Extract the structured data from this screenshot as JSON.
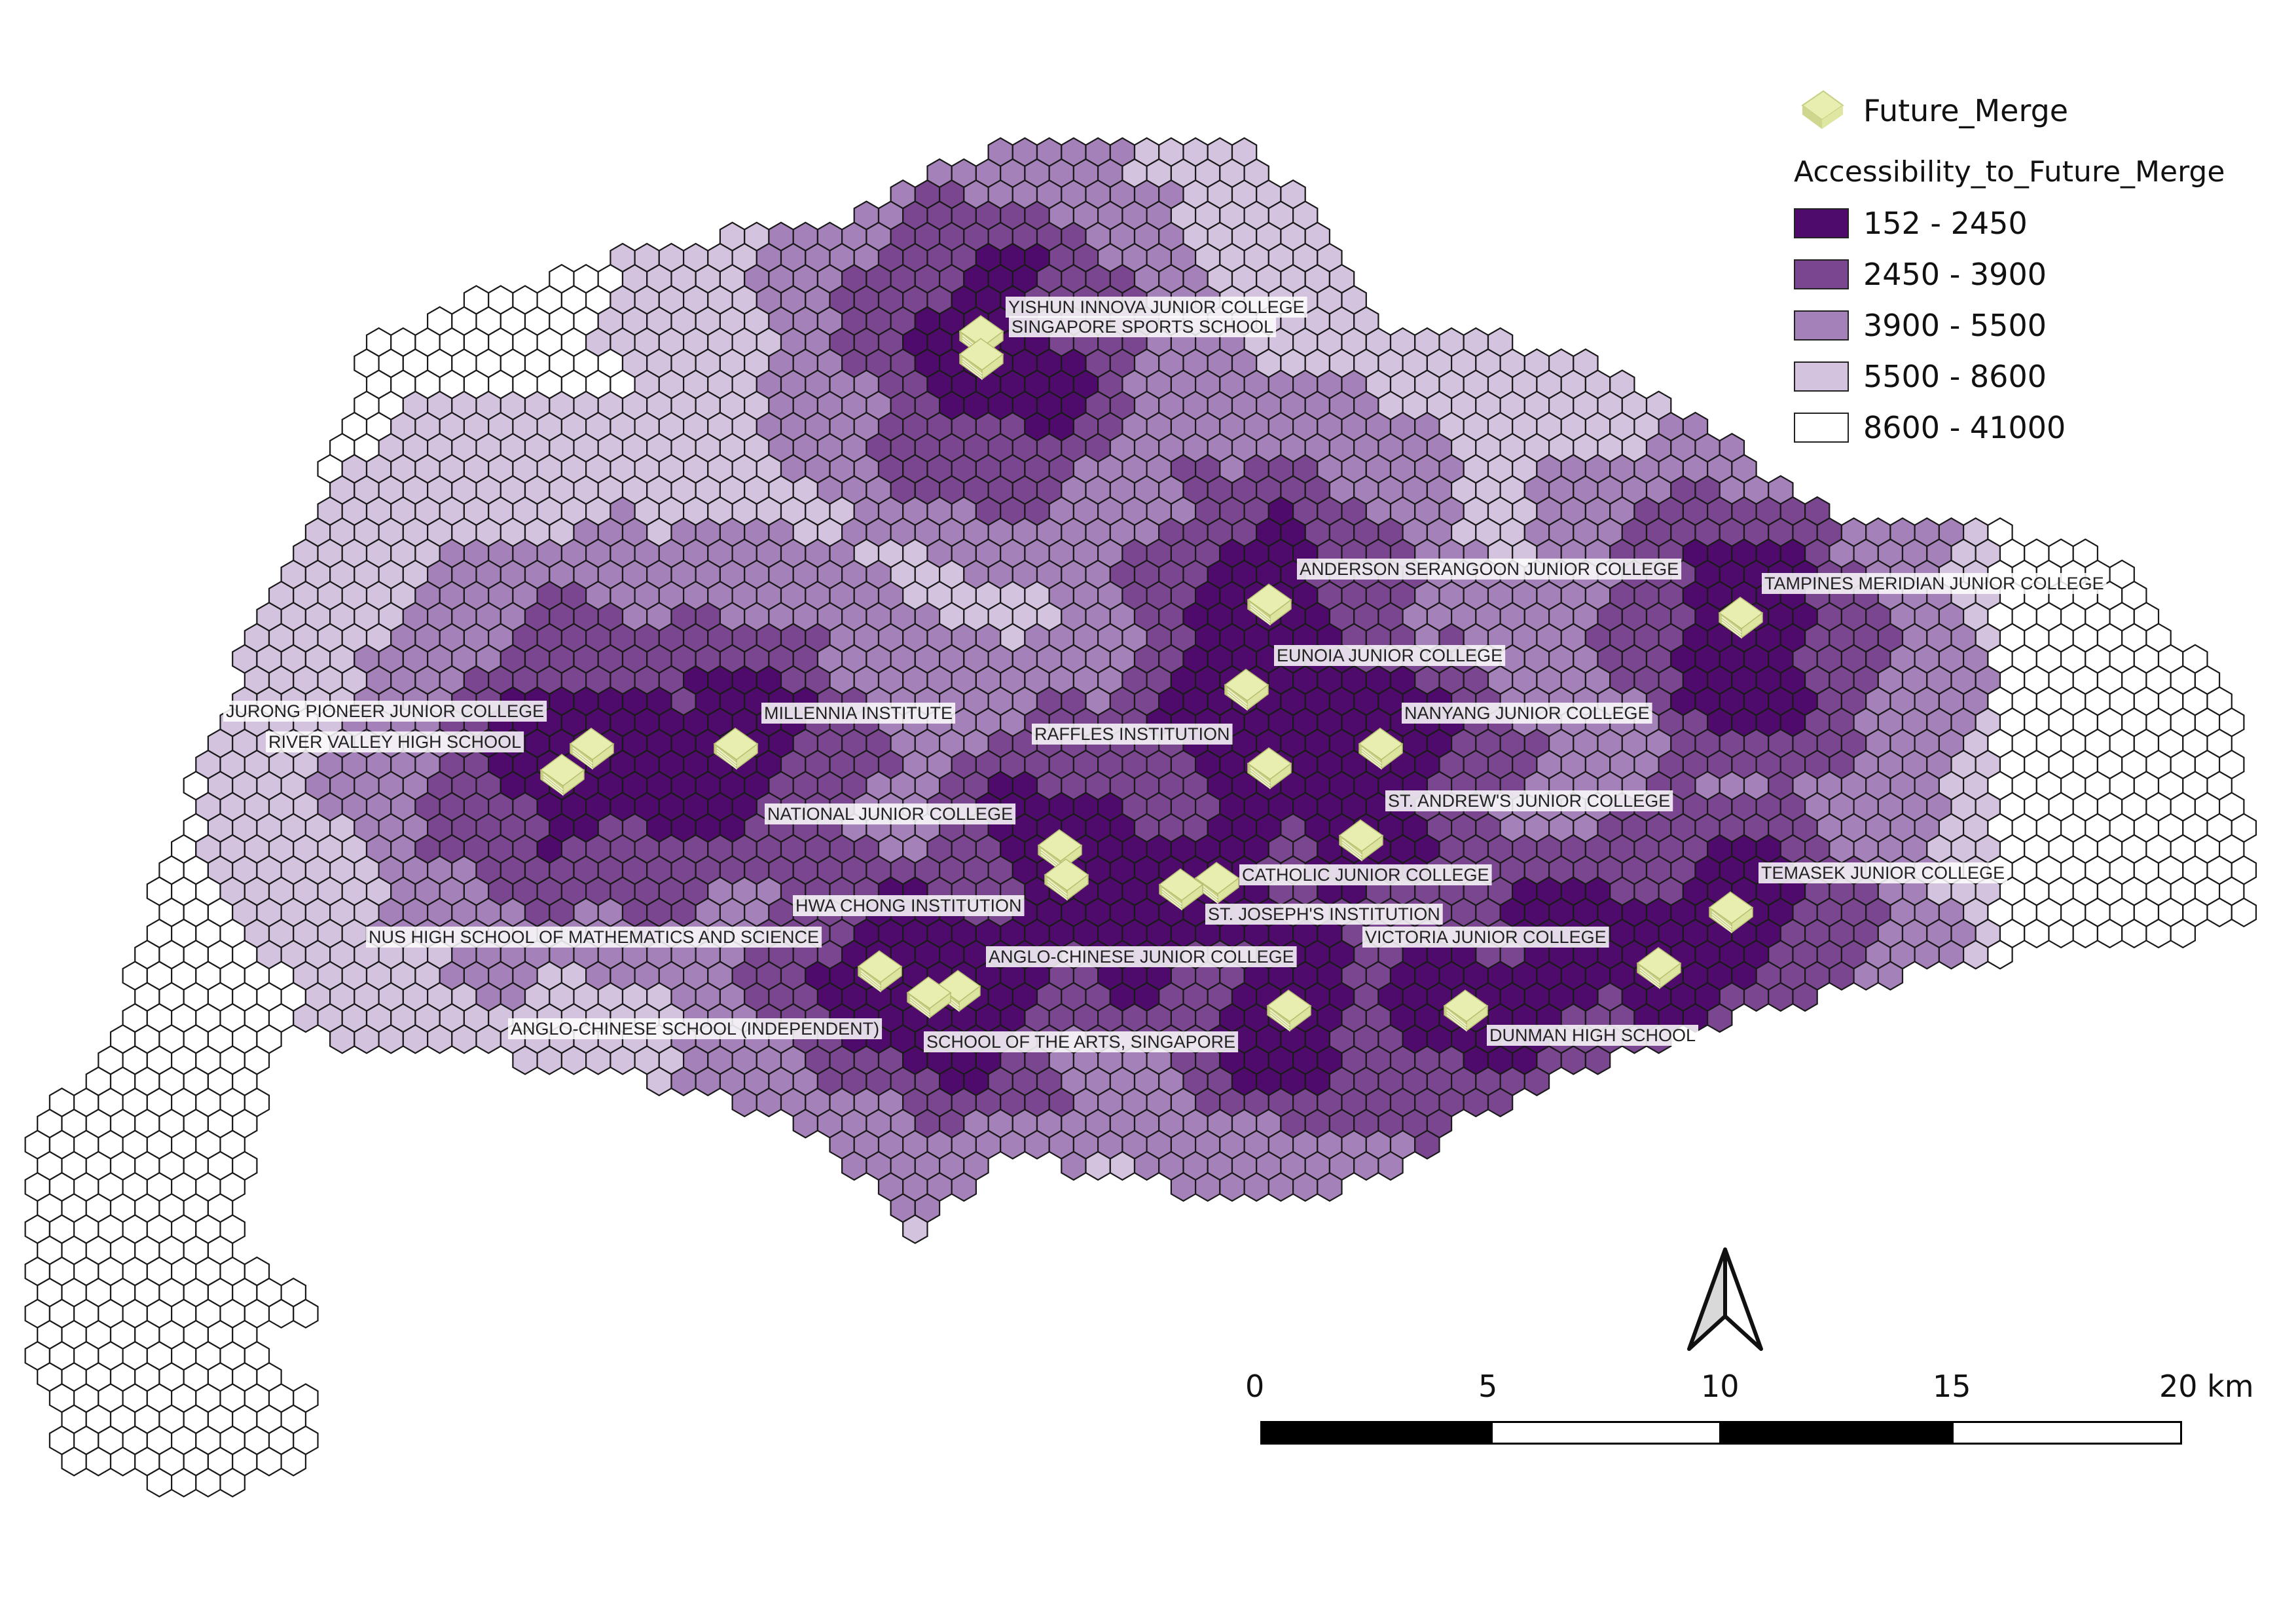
{
  "legend": {
    "point_layer": "Future_Merge",
    "point_icon": "book-stack-icon",
    "choropleth_title": "Accessibility_to_Future_Merge",
    "classes": [
      {
        "label": "152 - 2450",
        "color": "#4e0b6b"
      },
      {
        "label": "2450 - 3900",
        "color": "#7a4690"
      },
      {
        "label": "3900 - 5500",
        "color": "#a581b9"
      },
      {
        "label": "5500 - 8600",
        "color": "#d3c3de"
      },
      {
        "label": "8600 - 41000",
        "color": "#ffffff"
      }
    ]
  },
  "scale_bar": {
    "ticks": [
      "0",
      "5",
      "10",
      "15",
      "20 km"
    ]
  },
  "north_arrow": {
    "icon": "north-arrow-icon"
  },
  "icon_color": "#e8eeb0",
  "schools": [
    "YISHUN INNOVA JUNIOR COLLEGE",
    "SINGAPORE SPORTS SCHOOL",
    "ANDERSON SERANGOON JUNIOR COLLEGE",
    "TAMPINES MERIDIAN JUNIOR COLLEGE",
    "EUNOIA JUNIOR COLLEGE",
    "JURONG PIONEER JUNIOR COLLEGE",
    "MILLENNIA INSTITUTE",
    "NANYANG JUNIOR COLLEGE",
    "RIVER VALLEY HIGH SCHOOL",
    "RAFFLES INSTITUTION",
    "ST. ANDREW'S JUNIOR COLLEGE",
    "NATIONAL JUNIOR COLLEGE",
    "CATHOLIC JUNIOR COLLEGE",
    "TEMASEK JUNIOR COLLEGE",
    "HWA CHONG INSTITUTION",
    "ST. JOSEPH'S INSTITUTION",
    "NUS HIGH SCHOOL OF MATHEMATICS AND SCIENCE",
    "VICTORIA JUNIOR COLLEGE",
    "ANGLO-CHINESE JUNIOR COLLEGE",
    "DUNMAN HIGH SCHOOL",
    "ANGLO-CHINESE SCHOOL (INDEPENDENT)",
    "SCHOOL OF THE ARTS, SINGAPORE"
  ]
}
